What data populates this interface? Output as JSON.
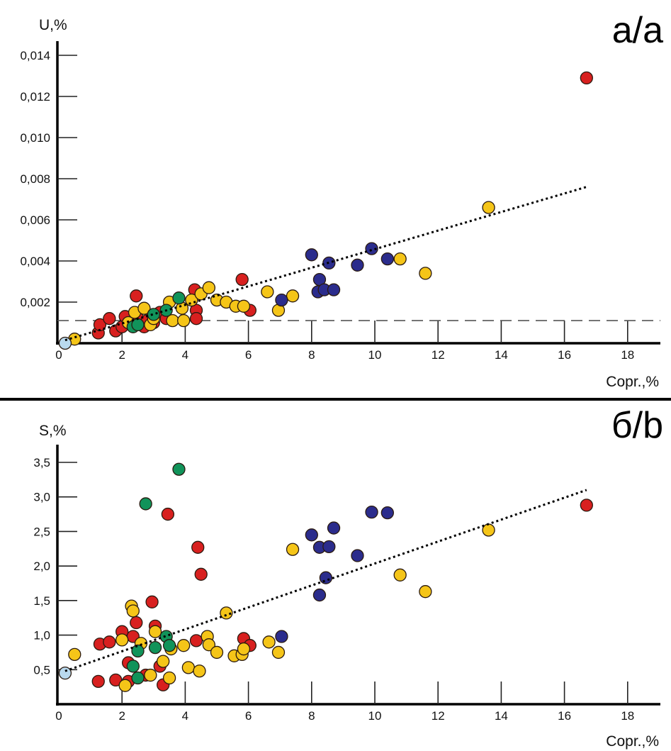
{
  "colors": {
    "red": "#d8201f",
    "yellow": "#f5c518",
    "green": "#11935a",
    "navy": "#2b2c8c",
    "lightblue": "#b9d9ee",
    "outline": "#2a1a10"
  },
  "chart_data": [
    {
      "type": "scatter",
      "panel_label": "а/a",
      "ylabel": "U,%",
      "xlabel": "Copr.,%",
      "xlim": [
        0,
        19
      ],
      "ylim": [
        0,
        0.0145
      ],
      "xticks": [
        0,
        2,
        4,
        6,
        8,
        10,
        12,
        14,
        16,
        18
      ],
      "xtick_labels": [
        "0",
        "2",
        "4",
        "6",
        "8",
        "10",
        "12",
        "14",
        "16",
        "18"
      ],
      "yticks": [
        0.002,
        0.004,
        0.006,
        0.008,
        0.01,
        0.012,
        0.014
      ],
      "ytick_labels": [
        "0,002",
        "0,004",
        "0,006",
        "0,008",
        "0,010",
        "0,012",
        "0,014"
      ],
      "grid": false,
      "threshold_line": {
        "y": 0.0011,
        "style": "dashed"
      },
      "trendline": {
        "x": [
          0.2,
          16.7
        ],
        "y": [
          0.00015,
          0.0076
        ],
        "style": "dotted"
      },
      "series": [
        {
          "name": "red",
          "color_key": "red",
          "points": [
            [
              1.25,
              0.0005
            ],
            [
              1.3,
              0.0009
            ],
            [
              1.6,
              0.0012
            ],
            [
              1.8,
              0.0006
            ],
            [
              2.0,
              0.0008
            ],
            [
              2.1,
              0.0013
            ],
            [
              2.3,
              0.0009
            ],
            [
              2.45,
              0.0023
            ],
            [
              2.5,
              0.0012
            ],
            [
              2.7,
              0.0008
            ],
            [
              2.8,
              0.0011
            ],
            [
              3.0,
              0.001
            ],
            [
              3.2,
              0.0015
            ],
            [
              3.4,
              0.0012
            ],
            [
              4.3,
              0.0026
            ],
            [
              4.35,
              0.0016
            ],
            [
              4.35,
              0.0012
            ],
            [
              5.8,
              0.0031
            ],
            [
              6.05,
              0.0016
            ],
            [
              16.7,
              0.0129
            ]
          ]
        },
        {
          "name": "yellow",
          "color_key": "yellow",
          "points": [
            [
              0.5,
              0.0002
            ],
            [
              2.2,
              0.001
            ],
            [
              2.4,
              0.0015
            ],
            [
              2.7,
              0.0017
            ],
            [
              2.9,
              0.0009
            ],
            [
              3.0,
              0.0012
            ],
            [
              3.5,
              0.002
            ],
            [
              3.6,
              0.0011
            ],
            [
              3.9,
              0.0017
            ],
            [
              3.95,
              0.0011
            ],
            [
              4.2,
              0.0021
            ],
            [
              4.5,
              0.0024
            ],
            [
              4.75,
              0.0027
            ],
            [
              5.0,
              0.0021
            ],
            [
              5.3,
              0.002
            ],
            [
              5.6,
              0.0018
            ],
            [
              5.85,
              0.0018
            ],
            [
              6.6,
              0.0025
            ],
            [
              6.95,
              0.0016
            ],
            [
              7.4,
              0.0023
            ],
            [
              10.8,
              0.0041
            ],
            [
              11.6,
              0.0034
            ],
            [
              13.6,
              0.0066
            ]
          ]
        },
        {
          "name": "green",
          "color_key": "green",
          "points": [
            [
              2.35,
              0.0008
            ],
            [
              2.5,
              0.0009
            ],
            [
              3.0,
              0.0014
            ],
            [
              3.4,
              0.0016
            ],
            [
              3.8,
              0.0022
            ]
          ]
        },
        {
          "name": "navy",
          "color_key": "navy",
          "points": [
            [
              7.05,
              0.0021
            ],
            [
              8.0,
              0.0043
            ],
            [
              8.2,
              0.0025
            ],
            [
              8.25,
              0.0031
            ],
            [
              8.4,
              0.0026
            ],
            [
              8.55,
              0.0039
            ],
            [
              8.7,
              0.0026
            ],
            [
              9.45,
              0.0038
            ],
            [
              9.9,
              0.0046
            ],
            [
              10.4,
              0.0041
            ]
          ]
        },
        {
          "name": "lightblue",
          "color_key": "lightblue",
          "points": [
            [
              0.2,
              0.0
            ]
          ]
        }
      ]
    },
    {
      "type": "scatter",
      "panel_label": "б/b",
      "ylabel": "S,%",
      "xlabel": "Copr.,%",
      "xlim": [
        0,
        19
      ],
      "ylim": [
        0,
        3.7
      ],
      "xticks": [
        0,
        2,
        4,
        6,
        8,
        10,
        12,
        14,
        16,
        18
      ],
      "xtick_labels": [
        "0",
        "2",
        "4",
        "6",
        "8",
        "10",
        "12",
        "14",
        "16",
        "18"
      ],
      "yticks": [
        0.5,
        1.0,
        1.5,
        2.0,
        2.5,
        3.0,
        3.5
      ],
      "ytick_labels": [
        "0,5",
        "1,0",
        "1,5",
        "2,0",
        "2,5",
        "3,0",
        "3,5"
      ],
      "grid": false,
      "trendline": {
        "x": [
          0.2,
          16.7
        ],
        "y": [
          0.48,
          3.1
        ],
        "style": "dotted"
      },
      "series": [
        {
          "name": "red",
          "color_key": "red",
          "points": [
            [
              1.25,
              0.33
            ],
            [
              1.3,
              0.87
            ],
            [
              1.6,
              0.9
            ],
            [
              1.8,
              0.35
            ],
            [
              2.0,
              1.05
            ],
            [
              2.2,
              0.33
            ],
            [
              2.2,
              0.6
            ],
            [
              2.35,
              0.98
            ],
            [
              2.45,
              1.18
            ],
            [
              2.75,
              0.42
            ],
            [
              2.95,
              1.48
            ],
            [
              3.05,
              1.13
            ],
            [
              3.2,
              0.55
            ],
            [
              3.3,
              0.28
            ],
            [
              3.45,
              2.75
            ],
            [
              4.35,
              0.92
            ],
            [
              4.4,
              2.27
            ],
            [
              4.5,
              1.88
            ],
            [
              5.85,
              0.95
            ],
            [
              6.05,
              0.85
            ],
            [
              16.7,
              2.88
            ]
          ]
        },
        {
          "name": "yellow",
          "color_key": "yellow",
          "points": [
            [
              0.5,
              0.72
            ],
            [
              2.0,
              0.93
            ],
            [
              2.1,
              0.27
            ],
            [
              2.3,
              1.42
            ],
            [
              2.35,
              1.35
            ],
            [
              2.6,
              0.88
            ],
            [
              2.9,
              0.42
            ],
            [
              3.05,
              1.05
            ],
            [
              3.3,
              0.62
            ],
            [
              3.5,
              0.38
            ],
            [
              3.55,
              0.8
            ],
            [
              3.95,
              0.85
            ],
            [
              4.1,
              0.53
            ],
            [
              4.45,
              0.48
            ],
            [
              4.7,
              0.98
            ],
            [
              4.75,
              0.86
            ],
            [
              5.0,
              0.75
            ],
            [
              5.3,
              1.32
            ],
            [
              5.55,
              0.7
            ],
            [
              5.8,
              0.72
            ],
            [
              5.85,
              0.8
            ],
            [
              6.65,
              0.9
            ],
            [
              6.95,
              0.75
            ],
            [
              7.4,
              2.24
            ],
            [
              10.8,
              1.87
            ],
            [
              11.6,
              1.63
            ],
            [
              13.6,
              2.52
            ]
          ]
        },
        {
          "name": "green",
          "color_key": "green",
          "points": [
            [
              2.35,
              0.55
            ],
            [
              2.5,
              0.38
            ],
            [
              2.5,
              0.77
            ],
            [
              2.75,
              2.9
            ],
            [
              3.05,
              0.82
            ],
            [
              3.4,
              0.98
            ],
            [
              3.5,
              0.85
            ],
            [
              3.8,
              3.4
            ]
          ]
        },
        {
          "name": "navy",
          "color_key": "navy",
          "points": [
            [
              7.05,
              0.98
            ],
            [
              8.0,
              2.45
            ],
            [
              8.25,
              1.58
            ],
            [
              8.25,
              2.27
            ],
            [
              8.45,
              1.83
            ],
            [
              8.55,
              2.28
            ],
            [
              8.7,
              2.55
            ],
            [
              9.45,
              2.15
            ],
            [
              9.9,
              2.78
            ],
            [
              10.4,
              2.77
            ]
          ]
        },
        {
          "name": "lightblue",
          "color_key": "lightblue",
          "points": [
            [
              0.2,
              0.45
            ]
          ]
        }
      ]
    }
  ]
}
